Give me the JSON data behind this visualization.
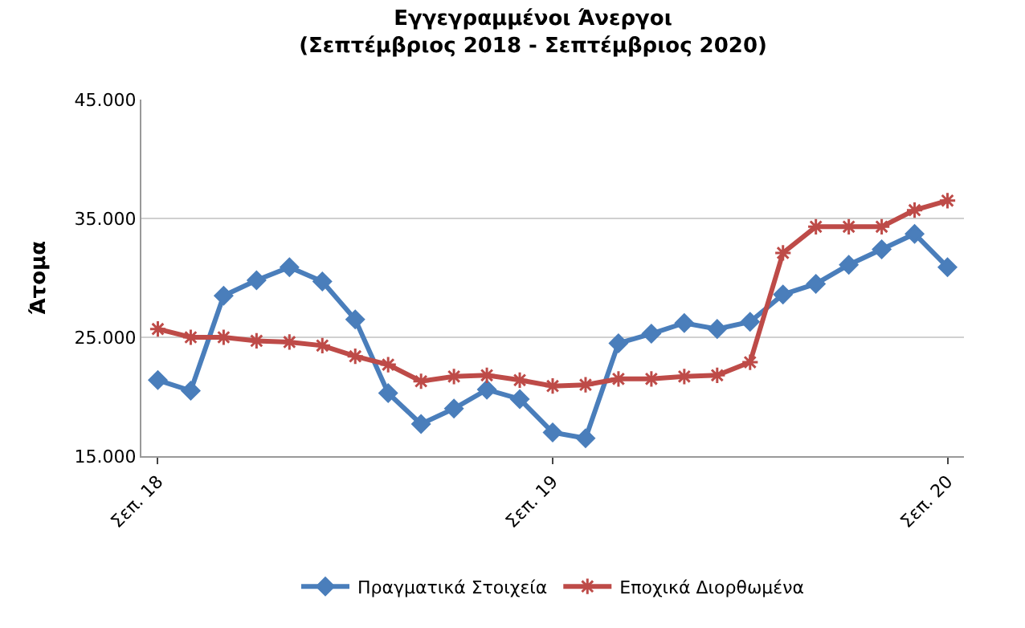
{
  "chart_data": {
    "type": "line",
    "title": "Εγγεγραμμένοι Άνεργοι",
    "subtitle": "(Σεπτέμβριος 2018 - Σεπτέμβριος 2020)",
    "ylabel": "Άτομα",
    "categories": [
      "Σεπ. 18",
      null,
      null,
      null,
      null,
      null,
      null,
      null,
      null,
      null,
      null,
      null,
      "Σεπ. 19",
      null,
      null,
      null,
      null,
      null,
      null,
      null,
      null,
      null,
      null,
      null,
      "Σεπ. 20"
    ],
    "series": [
      {
        "name": "Πραγματικά Στοιχεία",
        "color": "#4a7ebb",
        "marker": "diamond",
        "values": [
          21400,
          20500,
          28500,
          29800,
          30900,
          29700,
          26500,
          20300,
          17700,
          19000,
          20600,
          19800,
          17000,
          16500,
          24500,
          25300,
          26200,
          25700,
          26300,
          28600,
          29500,
          31100,
          32400,
          33700,
          30900
        ]
      },
      {
        "name": "Εποχικά Διορθωμένα",
        "color": "#be4b48",
        "marker": "cross",
        "values": [
          25700,
          25000,
          25000,
          24700,
          24600,
          24300,
          23400,
          22700,
          21300,
          21700,
          21800,
          21400,
          20900,
          21000,
          21500,
          21500,
          21700,
          21800,
          22900,
          32100,
          34300,
          34300,
          34300,
          35700,
          36500
        ]
      }
    ],
    "ylim": [
      15000,
      45000
    ],
    "yticks": [
      {
        "value": 15000,
        "label": "15.000"
      },
      {
        "value": 25000,
        "label": "25.000"
      },
      {
        "value": 35000,
        "label": "35.000"
      },
      {
        "value": 45000,
        "label": "45.000"
      }
    ],
    "grid": "y",
    "legend": "bottom",
    "line_style": "solid"
  }
}
